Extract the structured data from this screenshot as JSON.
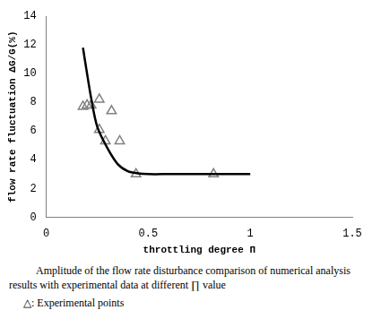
{
  "chart_data": {
    "type": "line",
    "x_label": "throttling degree Π",
    "y_label": "flow rate fluctuation ΔG/G(%)",
    "caption": [
      "Amplitude of the flow rate disturbance comparison of numerical analysis results with experimental data at different ∏ value",
      "△: Experimental points"
    ],
    "xlim": [
      0,
      1.5
    ],
    "xticks": [
      0,
      0.5,
      1,
      1.5
    ],
    "ylim": [
      0,
      14
    ],
    "yticks": [
      0,
      2,
      4,
      6,
      8,
      10,
      12,
      14
    ],
    "grid": false,
    "series": [
      {
        "type": "line",
        "color": "#000000",
        "marker": "none",
        "line_style": "solid",
        "x": [
          0.18,
          0.2,
          0.22,
          0.25,
          0.3,
          0.35,
          0.4,
          0.45,
          0.5,
          0.6,
          0.8,
          1.0
        ],
        "values": [
          11.8,
          10,
          8.3,
          6.3,
          4.8,
          3.7,
          3.2,
          3.05,
          3.0,
          3.0,
          3.0,
          3.0
        ]
      },
      {
        "type": "scatter",
        "color": "#808080",
        "marker": "triangle",
        "line_style": "none",
        "x": [
          0.18,
          0.2,
          0.22,
          0.26,
          0.26,
          0.29,
          0.32,
          0.36,
          0.44,
          0.82
        ],
        "values": [
          7.7,
          7.8,
          7.8,
          8.2,
          6.1,
          5.3,
          7.4,
          5.3,
          3.0,
          3.0
        ]
      }
    ]
  }
}
